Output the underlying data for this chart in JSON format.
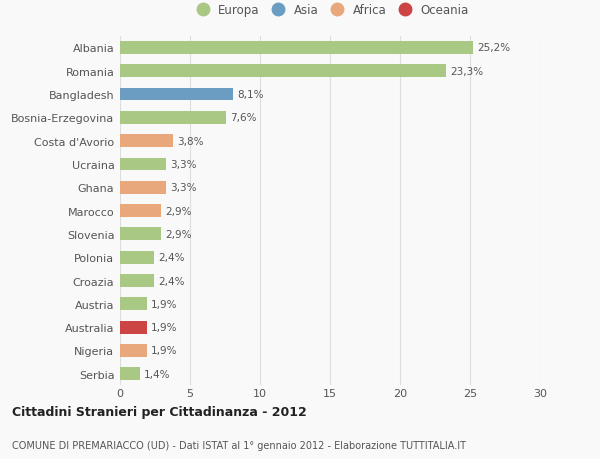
{
  "countries": [
    "Albania",
    "Romania",
    "Bangladesh",
    "Bosnia-Erzegovina",
    "Costa d'Avorio",
    "Ucraina",
    "Ghana",
    "Marocco",
    "Slovenia",
    "Polonia",
    "Croazia",
    "Austria",
    "Australia",
    "Nigeria",
    "Serbia"
  ],
  "values": [
    25.2,
    23.3,
    8.1,
    7.6,
    3.8,
    3.3,
    3.3,
    2.9,
    2.9,
    2.4,
    2.4,
    1.9,
    1.9,
    1.9,
    1.4
  ],
  "labels": [
    "25,2%",
    "23,3%",
    "8,1%",
    "7,6%",
    "3,8%",
    "3,3%",
    "3,3%",
    "2,9%",
    "2,9%",
    "2,4%",
    "2,4%",
    "1,9%",
    "1,9%",
    "1,9%",
    "1,4%"
  ],
  "regions": [
    "Europa",
    "Europa",
    "Asia",
    "Europa",
    "Africa",
    "Europa",
    "Africa",
    "Africa",
    "Europa",
    "Europa",
    "Europa",
    "Europa",
    "Oceania",
    "Africa",
    "Europa"
  ],
  "region_colors": {
    "Europa": "#a8c884",
    "Asia": "#6b9dc2",
    "Africa": "#e8a87c",
    "Oceania": "#cc4444"
  },
  "legend_order": [
    "Europa",
    "Asia",
    "Africa",
    "Oceania"
  ],
  "legend_colors": [
    "#a8c884",
    "#6b9dc2",
    "#e8a87c",
    "#cc4444"
  ],
  "xlim": [
    0,
    30
  ],
  "xticks": [
    0,
    5,
    10,
    15,
    20,
    25,
    30
  ],
  "title": "Cittadini Stranieri per Cittadinanza - 2012",
  "subtitle": "COMUNE DI PREMARIACCO (UD) - Dati ISTAT al 1° gennaio 2012 - Elaborazione TUTTITALIA.IT",
  "background_color": "#f9f9f9",
  "grid_color": "#dddddd",
  "bar_height": 0.55
}
